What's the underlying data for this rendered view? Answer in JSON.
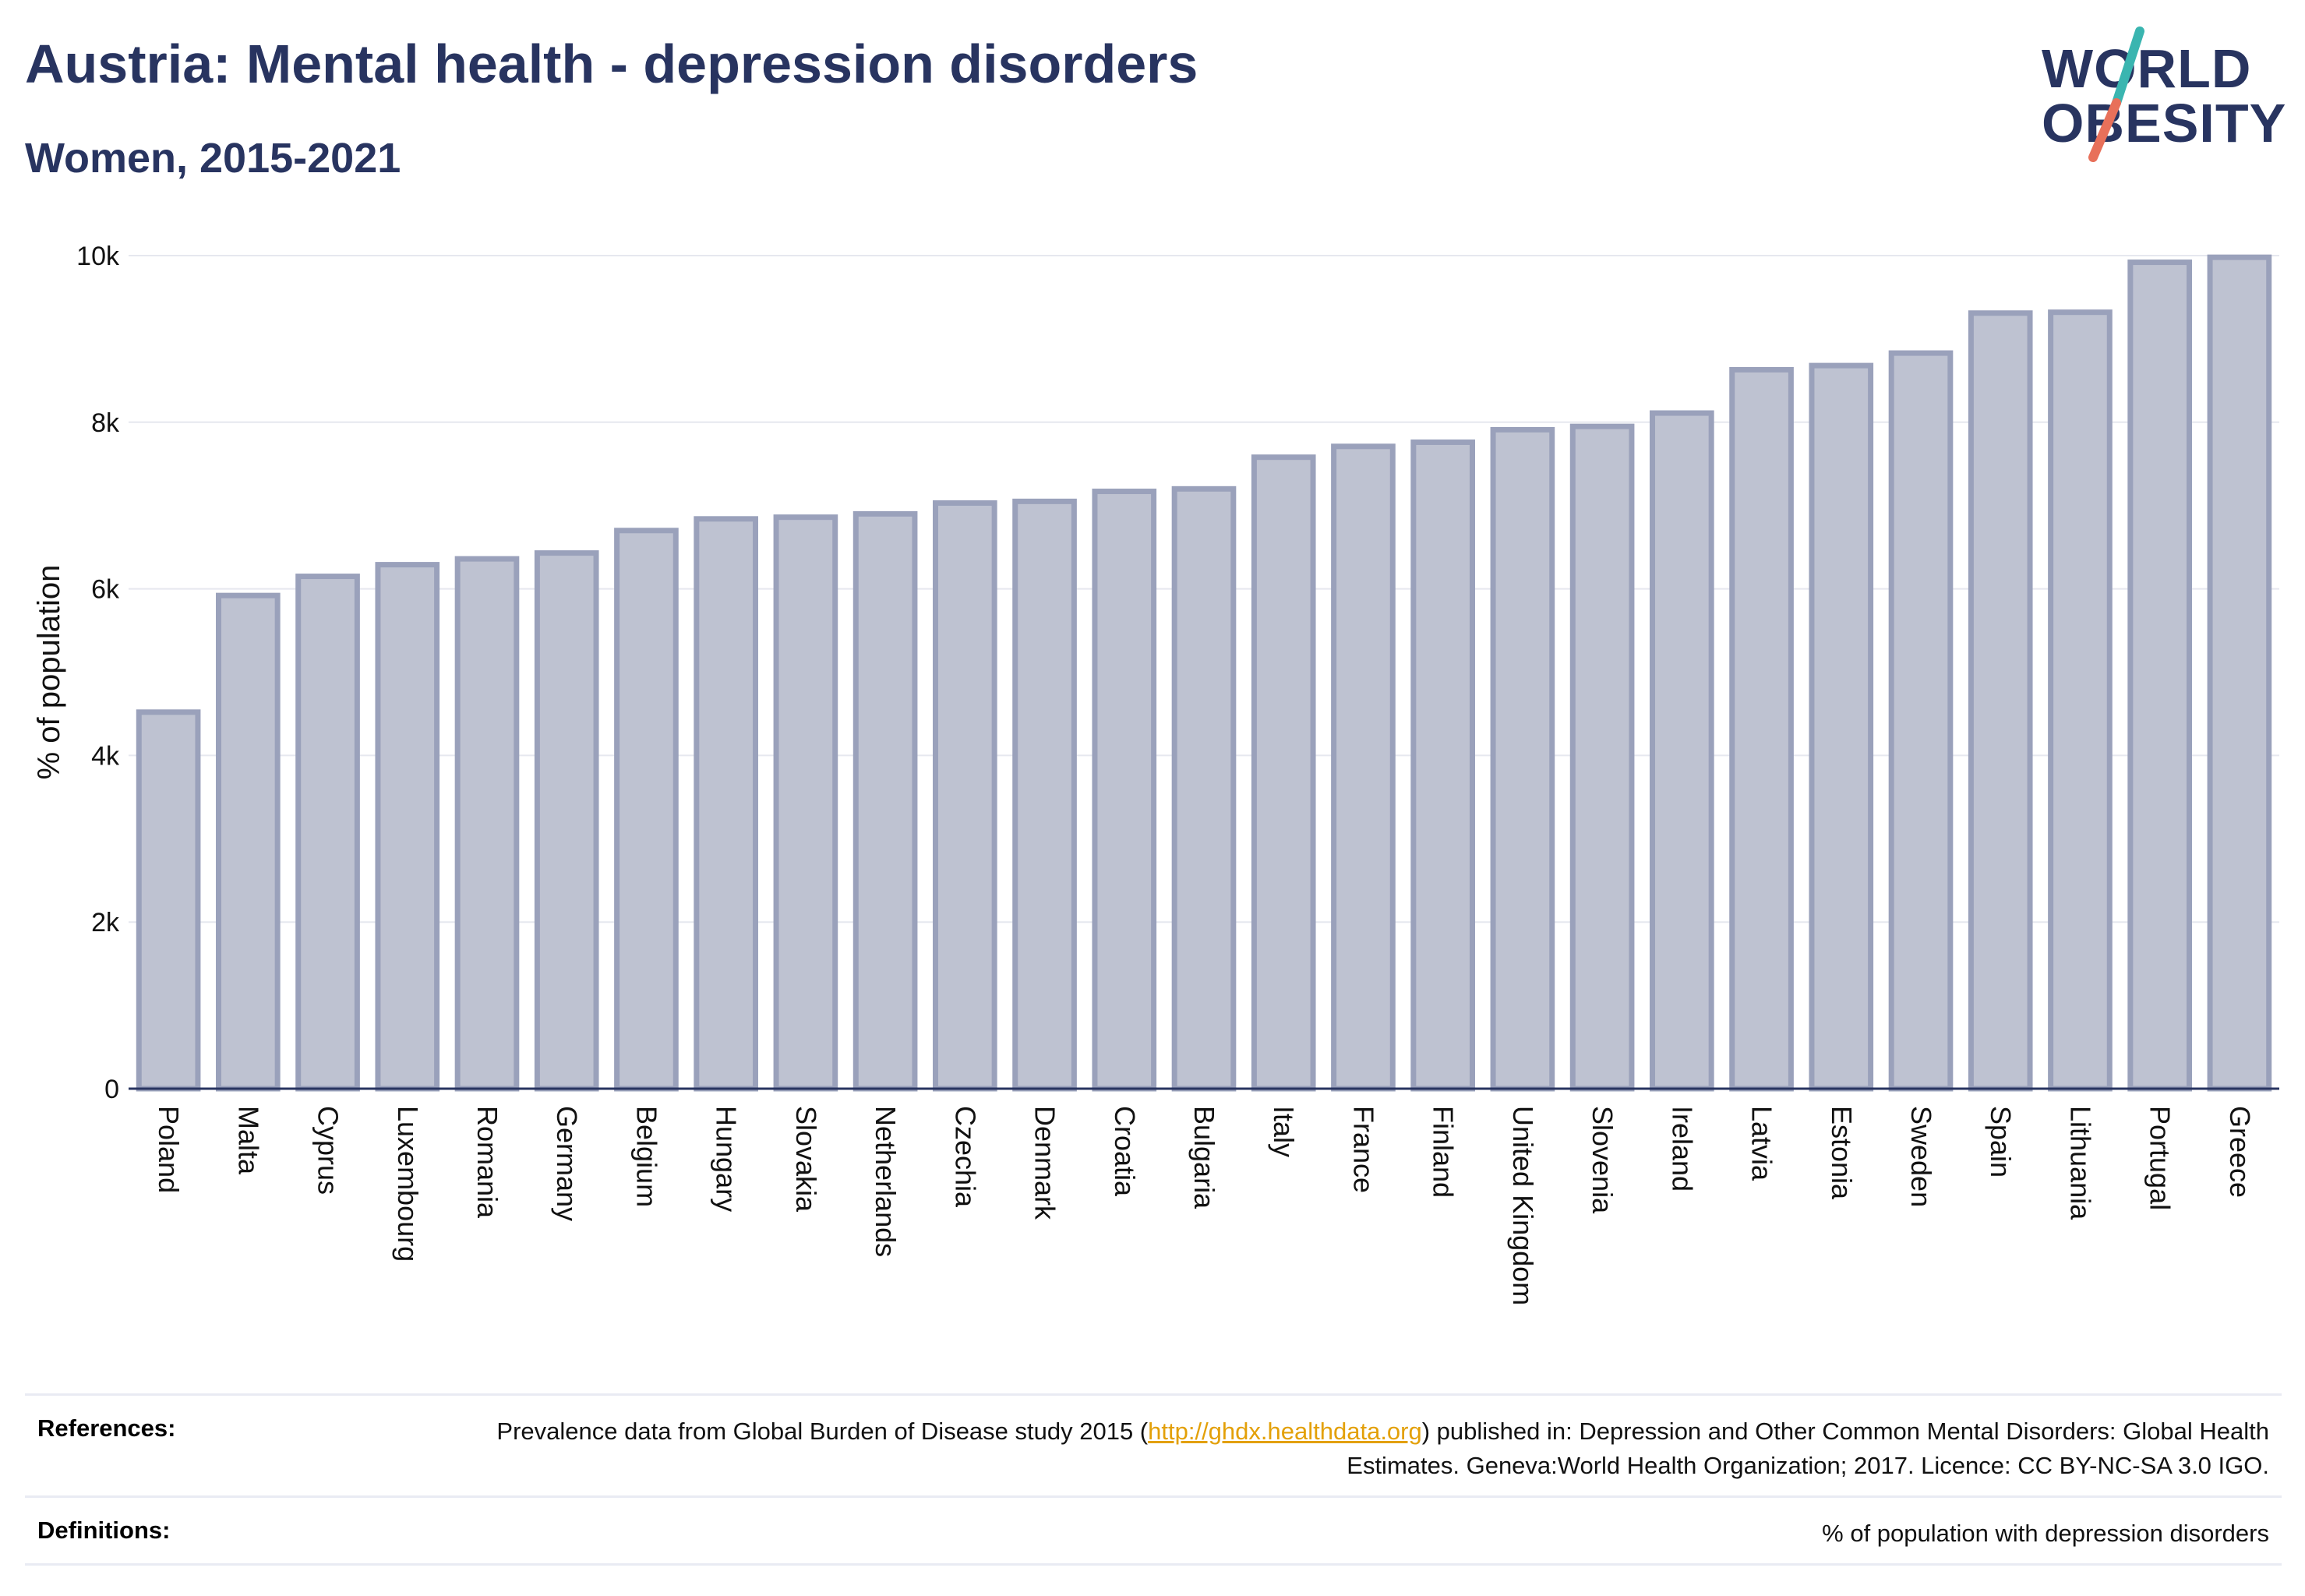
{
  "header": {
    "title": "Austria: Mental health - depression disorders",
    "subtitle": "Women, 2015-2021"
  },
  "logo": {
    "line1": "WORLD",
    "line2": "OBESITY",
    "accent_colors": [
      "#3ab5b0",
      "#e8705a"
    ]
  },
  "chart_data": {
    "type": "bar",
    "ylabel": "% of population",
    "ylim": [
      0,
      10000
    ],
    "yticks": [
      "0",
      "2k",
      "4k",
      "6k",
      "8k",
      "10k"
    ],
    "grid": true,
    "categories": [
      "Poland",
      "Malta",
      "Cyprus",
      "Luxembourg",
      "Romania",
      "Germany",
      "Belgium",
      "Hungary",
      "Slovakia",
      "Netherlands",
      "Czechia",
      "Denmark",
      "Croatia",
      "Bulgaria",
      "Italy",
      "France",
      "Finland",
      "United Kingdom",
      "Slovenia",
      "Ireland",
      "Latvia",
      "Estonia",
      "Sweden",
      "Spain",
      "Lithuania",
      "Portugal",
      "Greece"
    ],
    "values": [
      4520,
      5920,
      6150,
      6290,
      6360,
      6430,
      6700,
      6840,
      6860,
      6900,
      7030,
      7050,
      7170,
      7200,
      7580,
      7710,
      7760,
      7910,
      7950,
      8110,
      8630,
      8680,
      8830,
      9310,
      9320,
      9920,
      9980
    ],
    "bar_fill": "#bec2d1",
    "bar_stroke": "#9aa1bb"
  },
  "references": {
    "label": "References:",
    "text_before": "Prevalence data from Global Burden of Disease study 2015 (",
    "link": "http://ghdx.healthdata.org",
    "text_after": ") published in: Depression and Other Common Mental Disorders: Global Health Estimates. Geneva:World Health Organization; 2017. Licence: CC BY-NC-SA 3.0 IGO."
  },
  "definitions": {
    "label": "Definitions:",
    "text": "% of population with depression disorders"
  }
}
